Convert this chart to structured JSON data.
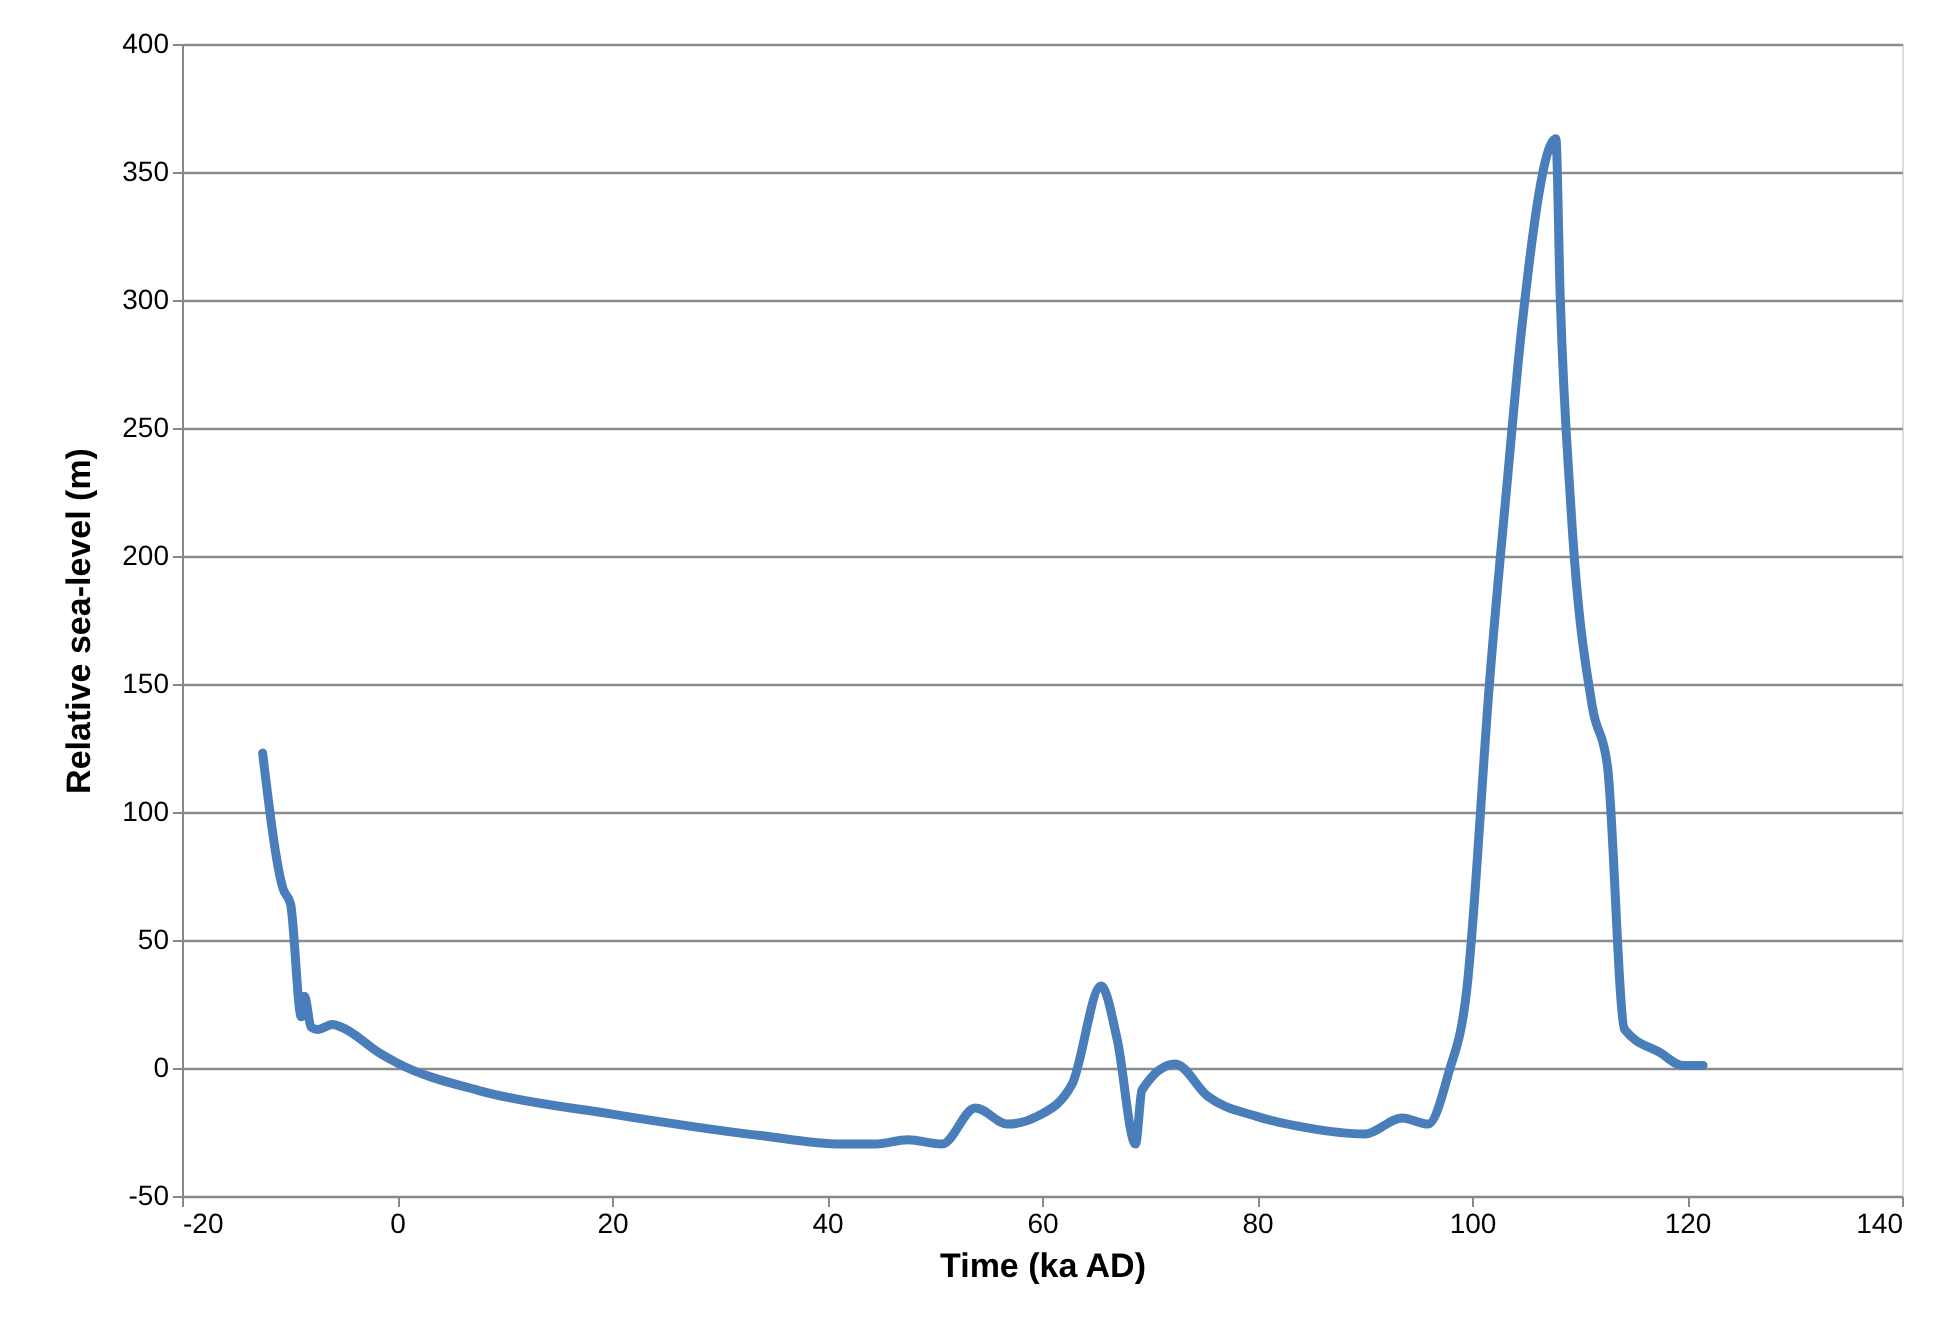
{
  "chart_data": {
    "type": "line",
    "xlabel": "Time (ka AD)",
    "ylabel": "Relative sea-level (m)",
    "xlim": [
      -20,
      140
    ],
    "xticks": [
      -20,
      0,
      20,
      40,
      60,
      80,
      100,
      120,
      140
    ],
    "ylim": [
      -50,
      400
    ],
    "yticks": [
      -50,
      0,
      50,
      100,
      150,
      200,
      250,
      300,
      350,
      400
    ],
    "grid": "y",
    "marker": "none",
    "line_style": "solid",
    "series": [
      {
        "color": "#4a7ebb",
        "x": [
          -12.5,
          -10.6,
          -9.9,
          -8.9,
          -8.6,
          -8.0,
          -7.4,
          -6.0,
          -5.2,
          -1.5,
          0,
          7.8,
          20,
          34,
          41.3,
          44.5,
          47.5,
          50.7,
          53.8,
          56.8,
          59.6,
          62.8,
          65.5,
          67,
          68.7,
          69.3,
          72.4,
          75.4,
          79.9,
          84.7,
          90,
          93.5,
          95.9,
          97.8,
          99.6,
          99.9,
          101.6,
          103.3,
          104.6,
          107.8,
          108.2,
          109.2,
          111.2,
          112.6,
          114.2,
          117.5,
          119.6,
          121.5
        ],
        "values": [
          123,
          70,
          64,
          20,
          28,
          16,
          15,
          17,
          16,
          5.5,
          2,
          -9,
          -18,
          -26.5,
          -29.7,
          -29.7,
          -28,
          -29.7,
          -15.6,
          -21.9,
          -18.8,
          -6.3,
          32,
          11,
          -29.7,
          -8.6,
          1.6,
          -11,
          -18.8,
          -23.4,
          -25.8,
          -19.5,
          -21.9,
          -2.3,
          34,
          48,
          149,
          230,
          288,
          363,
          302,
          219,
          141,
          118,
          15,
          6,
          1,
          1
        ]
      }
    ]
  }
}
